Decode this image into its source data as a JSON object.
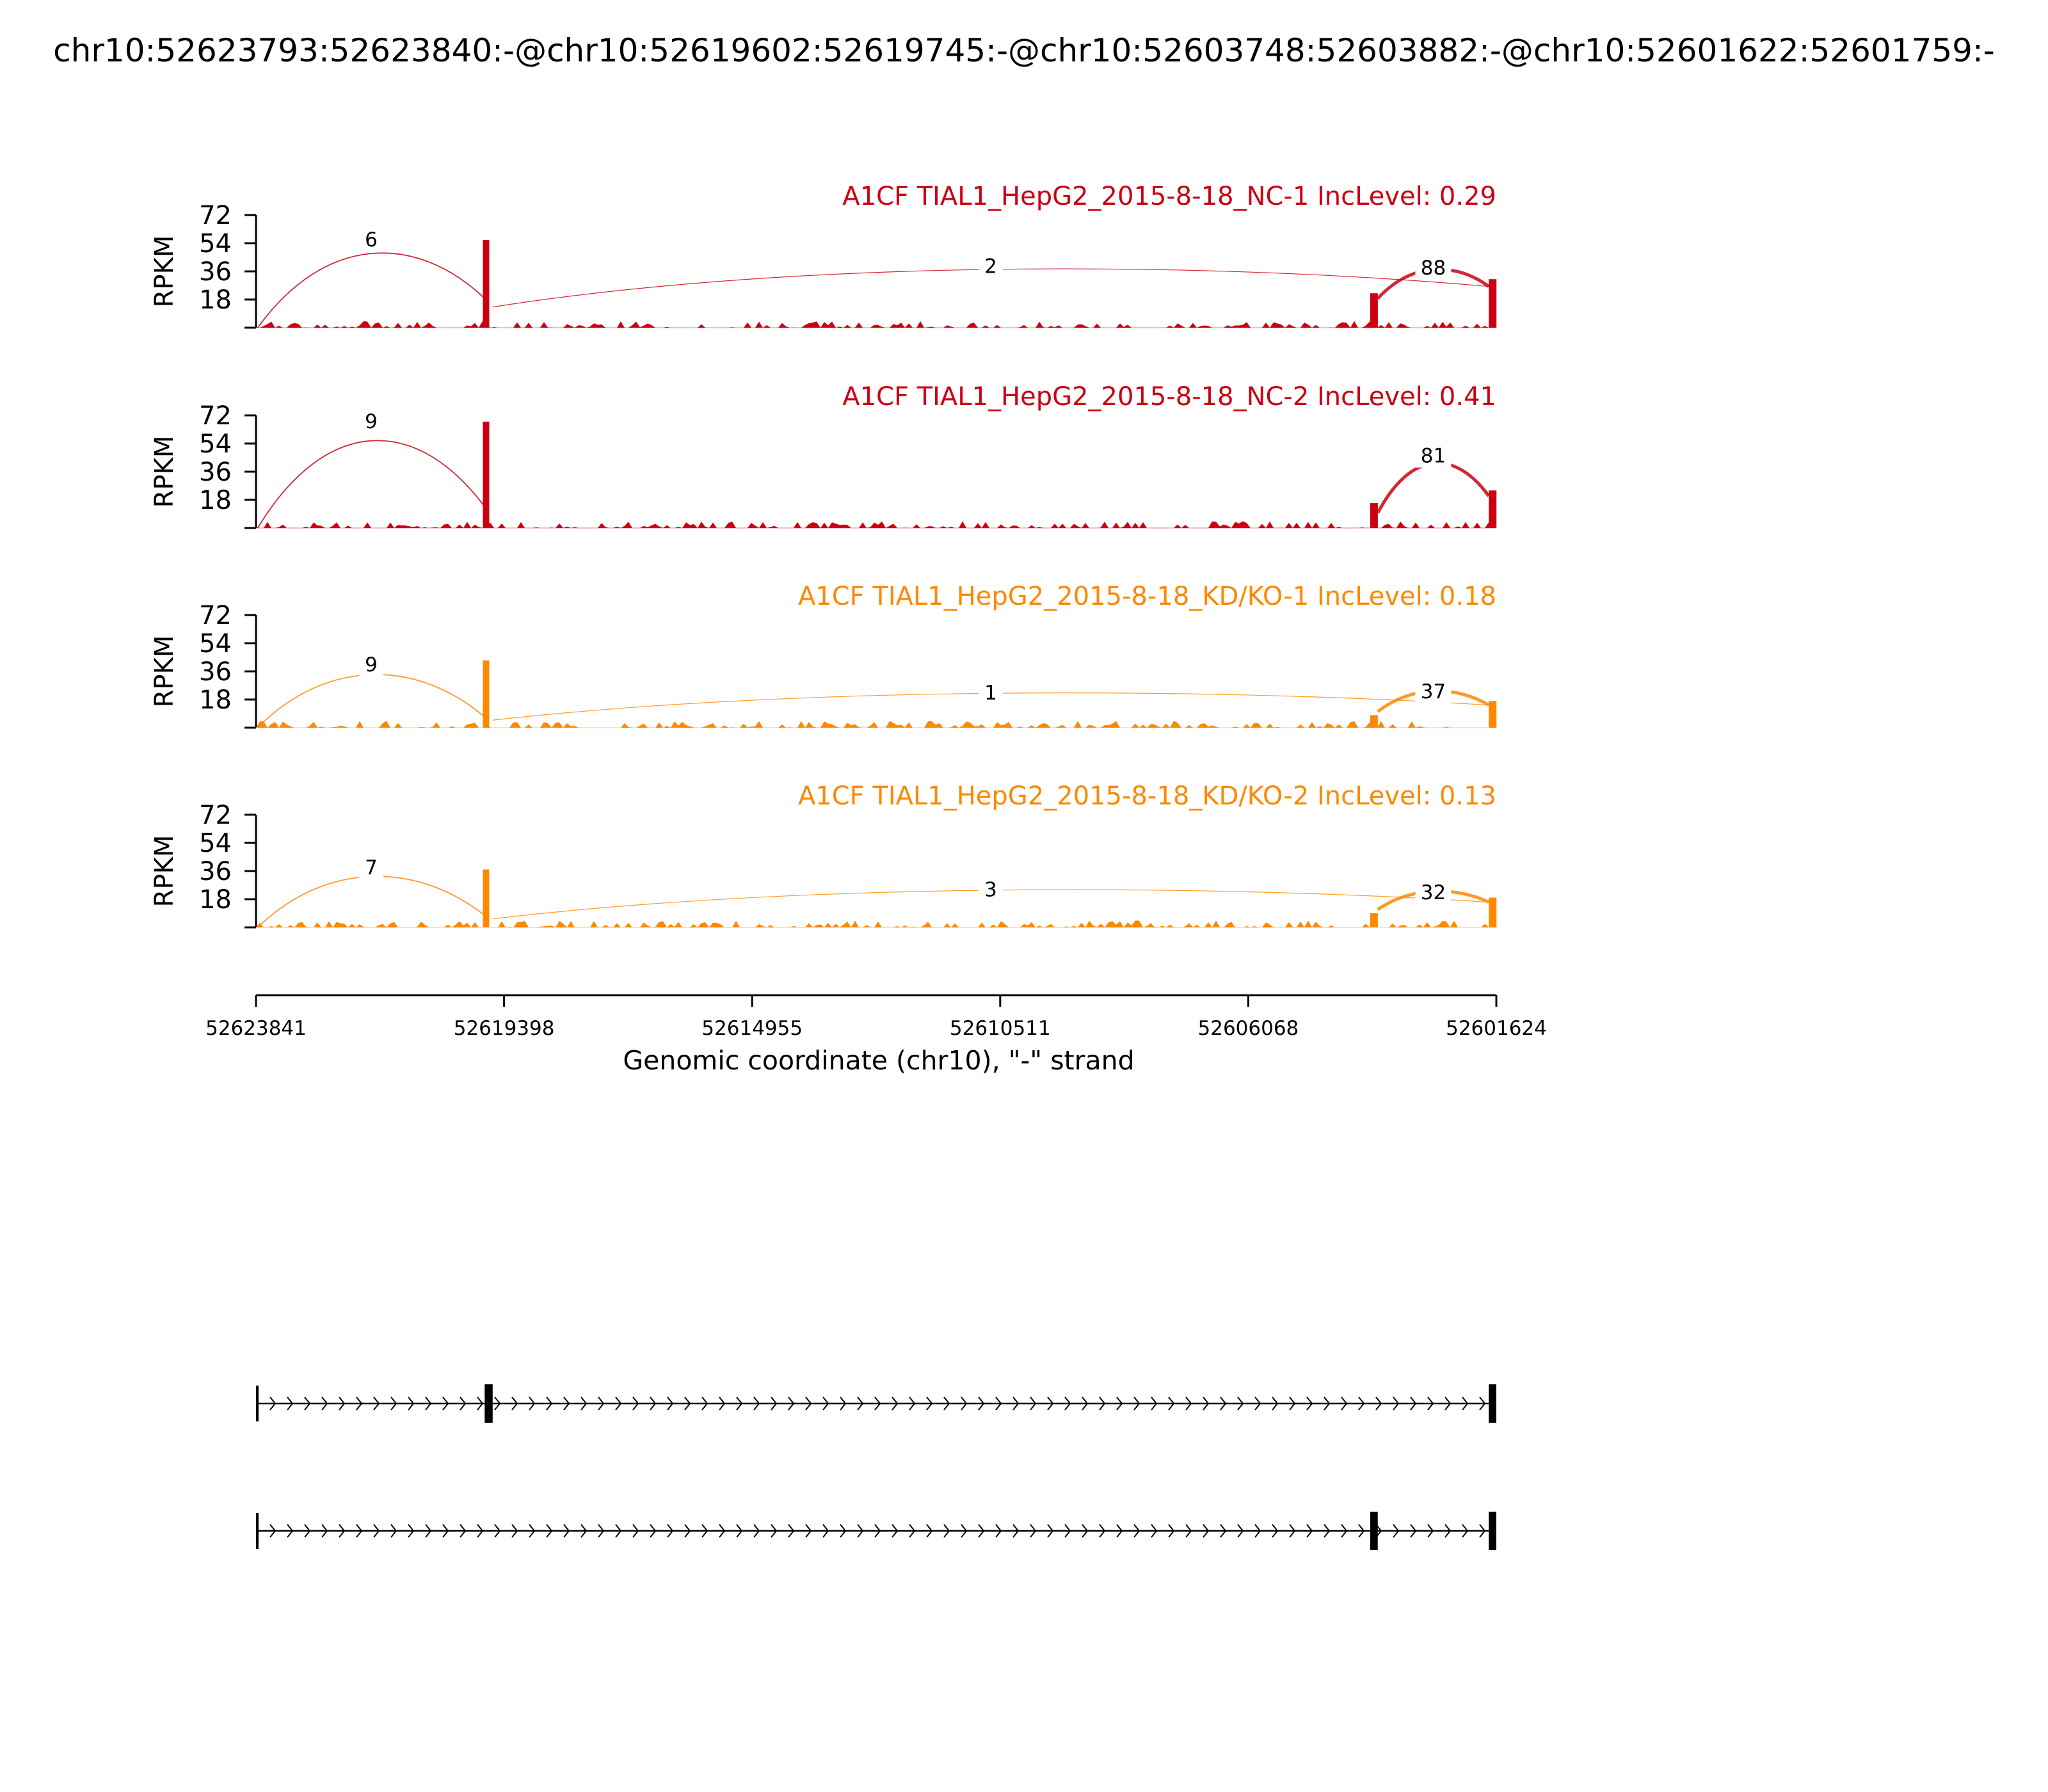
{
  "title": "chr10:52623793:52623840:-@chr10:52619602:52619745:-@chr10:52603748:52603882:-@chr10:52601622:52601759:-",
  "chart_data": {
    "type": "sashimi",
    "xlabel": "Genomic coordinate (chr10), \"-\" strand",
    "ylabel": "RPKM",
    "xlim": [
      52623841,
      52601624
    ],
    "x_ticks": [
      "52623841",
      "52619398",
      "52614955",
      "52610511",
      "52606068",
      "52601624"
    ],
    "y_ticks": [
      "18",
      "36",
      "54",
      "72"
    ],
    "ylim": [
      0,
      72
    ],
    "tracks": [
      {
        "title": "A1CF TIAL1_HepG2_2015-8-18_NC-1 IncLevel: 0.29",
        "color": "#cc0011",
        "peaks": [
          {
            "pos": 52619720,
            "value": 56
          },
          {
            "pos": 52603815,
            "value": 22
          },
          {
            "pos": 52601690,
            "value": 31
          }
        ],
        "junctions": [
          {
            "label": "6",
            "start": 52623810,
            "end": 52619745,
            "height": 56
          },
          {
            "label": "2",
            "start": 52619602,
            "end": 52601759,
            "height": 39
          },
          {
            "label": "88",
            "start": 52603748,
            "end": 52601759,
            "height": 38
          }
        ]
      },
      {
        "title": "A1CF TIAL1_HepG2_2015-8-18_NC-2 IncLevel: 0.41",
        "color": "#cc0011",
        "peaks": [
          {
            "pos": 52619720,
            "value": 68
          },
          {
            "pos": 52603815,
            "value": 16
          },
          {
            "pos": 52601690,
            "value": 24
          }
        ],
        "junctions": [
          {
            "label": "9",
            "start": 52623810,
            "end": 52619745,
            "height": 68
          },
          {
            "label": "81",
            "start": 52603748,
            "end": 52601759,
            "height": 46
          }
        ]
      },
      {
        "title": "A1CF TIAL1_HepG2_2015-8-18_KD/KO-1 IncLevel: 0.18",
        "color": "#ff8800",
        "peaks": [
          {
            "pos": 52619720,
            "value": 43
          },
          {
            "pos": 52603815,
            "value": 8
          },
          {
            "pos": 52601690,
            "value": 17
          }
        ],
        "junctions": [
          {
            "label": "9",
            "start": 52623810,
            "end": 52619745,
            "height": 40
          },
          {
            "label": "1",
            "start": 52619602,
            "end": 52601759,
            "height": 22
          },
          {
            "label": "37",
            "start": 52603748,
            "end": 52601759,
            "height": 23
          }
        ]
      },
      {
        "title": "A1CF TIAL1_HepG2_2015-8-18_KD/KO-2 IncLevel: 0.13",
        "color": "#ff8800",
        "peaks": [
          {
            "pos": 52619720,
            "value": 37
          },
          {
            "pos": 52603815,
            "value": 9
          },
          {
            "pos": 52601690,
            "value": 19
          }
        ],
        "junctions": [
          {
            "label": "7",
            "start": 52623810,
            "end": 52619745,
            "height": 38
          },
          {
            "label": "3",
            "start": 52619602,
            "end": 52601759,
            "height": 24
          },
          {
            "label": "32",
            "start": 52603748,
            "end": 52601759,
            "height": 22
          }
        ]
      }
    ],
    "isoforms": [
      {
        "exons": [
          {
            "start": 52623841,
            "end": 52623800
          },
          {
            "start": 52619745,
            "end": 52619602
          },
          {
            "start": 52601759,
            "end": 52601624
          }
        ]
      },
      {
        "exons": [
          {
            "start": 52623841,
            "end": 52623800
          },
          {
            "start": 52603882,
            "end": 52603748
          },
          {
            "start": 52601759,
            "end": 52601624
          }
        ]
      }
    ]
  }
}
